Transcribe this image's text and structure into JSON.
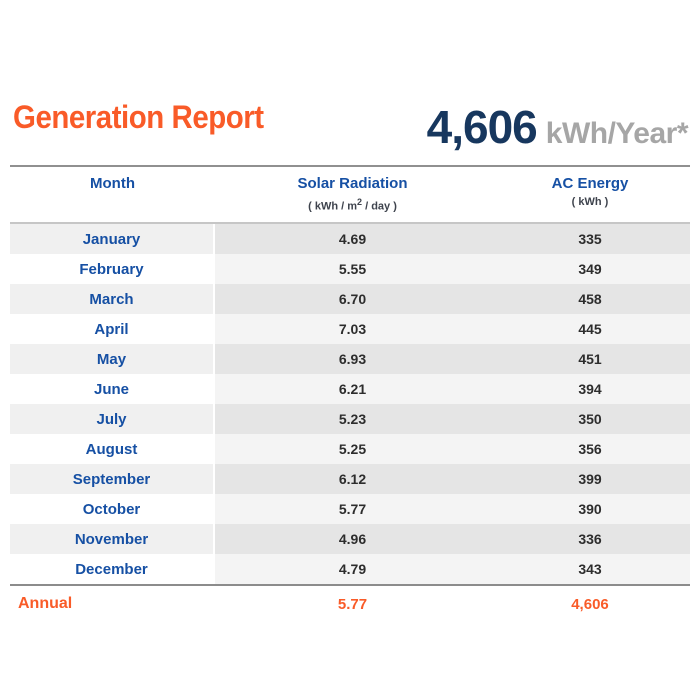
{
  "header": {
    "title": "Generation Report",
    "annual_value": "4,606",
    "annual_unit": "kWh/Year*"
  },
  "table": {
    "columns": [
      {
        "label": "Month"
      },
      {
        "label": "Solar Radiation",
        "sub_prefix": "( kWh / m",
        "sub_sup": "2",
        "sub_suffix": " / day )"
      },
      {
        "label": "AC Energy",
        "sublabel": "( kWh )"
      }
    ],
    "rows": [
      {
        "month": "January",
        "radiation": "4.69",
        "energy": "335"
      },
      {
        "month": "February",
        "radiation": "5.55",
        "energy": "349"
      },
      {
        "month": "March",
        "radiation": "6.70",
        "energy": "458"
      },
      {
        "month": "April",
        "radiation": "7.03",
        "energy": "445"
      },
      {
        "month": "May",
        "radiation": "6.93",
        "energy": "451"
      },
      {
        "month": "June",
        "radiation": "6.21",
        "energy": "394"
      },
      {
        "month": "July",
        "radiation": "5.23",
        "energy": "350"
      },
      {
        "month": "August",
        "radiation": "5.25",
        "energy": "356"
      },
      {
        "month": "September",
        "radiation": "6.12",
        "energy": "399"
      },
      {
        "month": "October",
        "radiation": "5.77",
        "energy": "390"
      },
      {
        "month": "November",
        "radiation": "4.96",
        "energy": "336"
      },
      {
        "month": "December",
        "radiation": "4.79",
        "energy": "343"
      }
    ],
    "annual": {
      "label": "Annual",
      "radiation": "5.77",
      "energy": "4,606"
    }
  },
  "colors": {
    "accent_orange": "#F95B28",
    "navy": "#17375E",
    "unit_gray": "#A6A6A6",
    "header_blue": "#1650A4"
  },
  "chart_data": {
    "type": "table",
    "title": "Generation Report",
    "columns": [
      "Month",
      "Solar Radiation ( kWh / m2 / day )",
      "AC Energy ( kWh )"
    ],
    "categories": [
      "January",
      "February",
      "March",
      "April",
      "May",
      "June",
      "July",
      "August",
      "September",
      "October",
      "November",
      "December"
    ],
    "series": [
      {
        "name": "Solar Radiation (kWh/m2/day)",
        "values": [
          4.69,
          5.55,
          6.7,
          7.03,
          6.93,
          6.21,
          5.23,
          5.25,
          6.12,
          5.77,
          4.96,
          4.79
        ]
      },
      {
        "name": "AC Energy (kWh)",
        "values": [
          335,
          349,
          458,
          445,
          451,
          394,
          350,
          356,
          399,
          390,
          336,
          343
        ]
      }
    ],
    "annual": {
      "solar_radiation": 5.77,
      "ac_energy": 4606,
      "total_label": "4,606 kWh/Year*"
    }
  }
}
